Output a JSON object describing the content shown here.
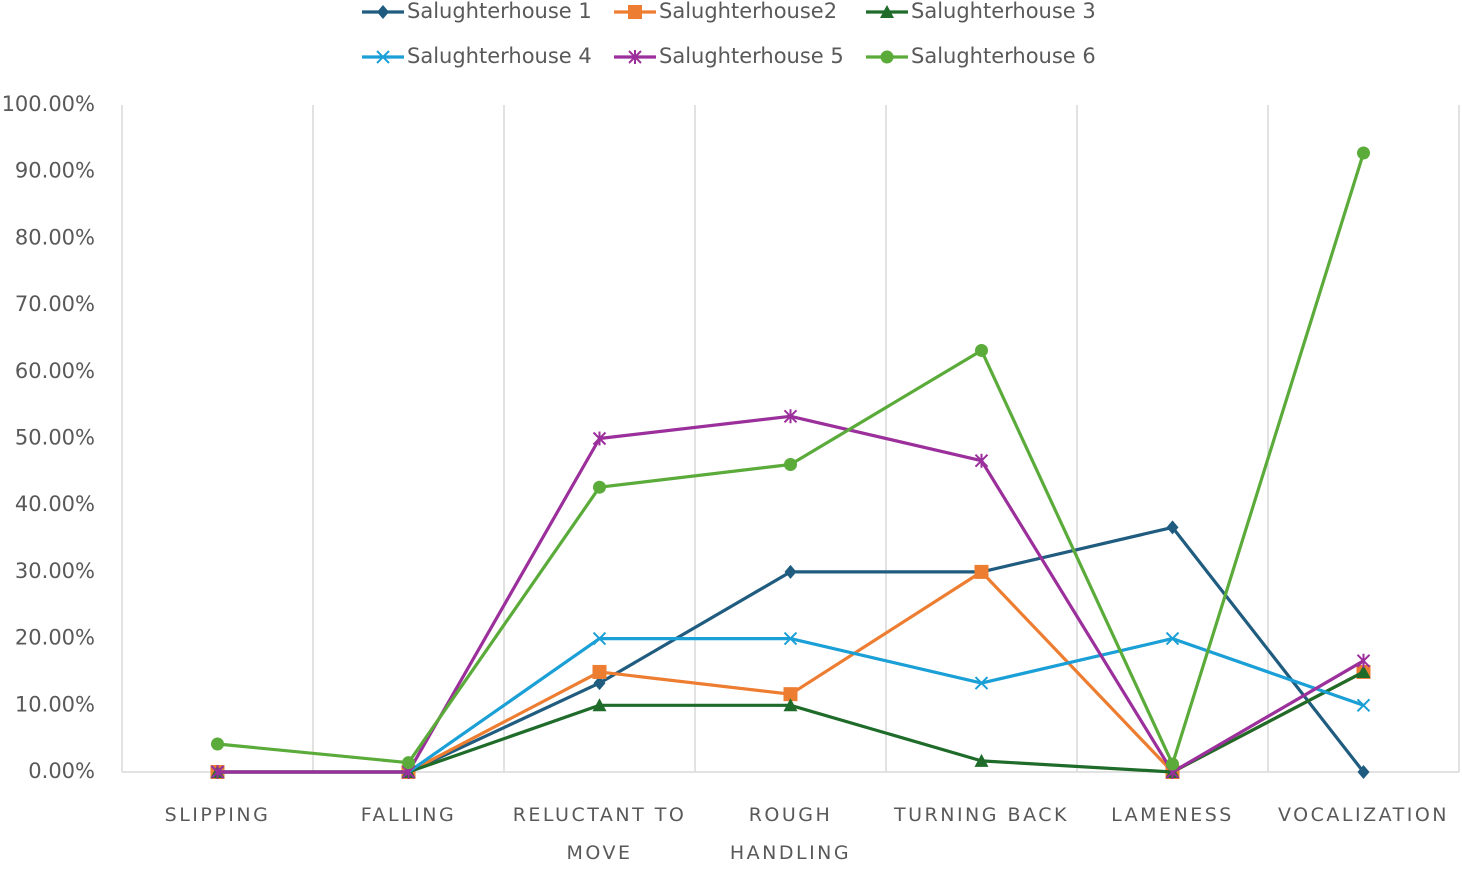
{
  "chart_data": {
    "type": "line",
    "categories": [
      "SLIPPING",
      "FALLING",
      "RELUCTANT TO MOVE",
      "ROUGH HANDLING",
      "TURNING BACK",
      "LAMENESS",
      "VOCALIZATION"
    ],
    "ylim": [
      0,
      100
    ],
    "yticks": [
      {
        "value": 0,
        "label": "0.00%"
      },
      {
        "value": 10,
        "label": "10.00%"
      },
      {
        "value": 20,
        "label": "20.00%"
      },
      {
        "value": 30,
        "label": "30.00%"
      },
      {
        "value": 40,
        "label": "40.00%"
      },
      {
        "value": 50,
        "label": "50.00%"
      },
      {
        "value": 60,
        "label": "60.00%"
      },
      {
        "value": 70,
        "label": "70.00%"
      },
      {
        "value": 80,
        "label": "80.00%"
      },
      {
        "value": 90,
        "label": "90.00%"
      },
      {
        "value": 100,
        "label": "100.00%"
      }
    ],
    "legend": "top",
    "series": [
      {
        "name": "Salughterhouse 1",
        "color": "#1f5c7f",
        "marker": "diamond",
        "values": [
          0,
          0,
          13.33,
          30,
          30,
          36.67,
          0
        ]
      },
      {
        "name": "Salughterhouse2",
        "color": "#ed7d31",
        "marker": "square",
        "values": [
          0,
          0,
          15,
          11.67,
          30,
          0,
          15
        ]
      },
      {
        "name": "Salughterhouse 3",
        "color": "#1e6b2a",
        "marker": "triangle",
        "values": [
          0,
          0,
          10,
          10,
          1.67,
          0,
          15
        ]
      },
      {
        "name": "Salughterhouse 4",
        "color": "#1a9fd6",
        "marker": "x",
        "values": [
          0,
          0,
          20,
          20,
          13.33,
          20,
          10
        ]
      },
      {
        "name": "Salughterhouse 5",
        "color": "#9b2f9b",
        "marker": "asterisk",
        "values": [
          0,
          0,
          50,
          53.33,
          46.67,
          0,
          16.67
        ]
      },
      {
        "name": "Salughterhouse 6",
        "color": "#5aab3a",
        "marker": "circle",
        "values": [
          4.2,
          1.4,
          42.7,
          46.1,
          63.2,
          1.2,
          92.8
        ]
      }
    ]
  }
}
